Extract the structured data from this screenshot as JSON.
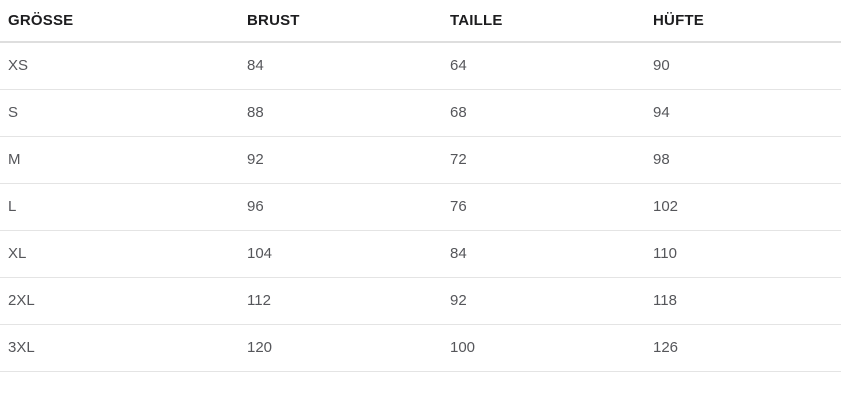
{
  "table": {
    "columns": [
      "GRÖSSE",
      "BRUST",
      "TAILLE",
      "HÜFTE"
    ],
    "rows": [
      {
        "size": "XS",
        "values": [
          "84",
          "64",
          "90"
        ]
      },
      {
        "size": "S",
        "values": [
          "88",
          "68",
          "94"
        ]
      },
      {
        "size": "M",
        "values": [
          "92",
          "72",
          "98"
        ]
      },
      {
        "size": "L",
        "values": [
          "96",
          "76",
          "102"
        ]
      },
      {
        "size": "XL",
        "values": [
          "104",
          "84",
          "110"
        ]
      },
      {
        "size": "2XL",
        "values": [
          "112",
          "92",
          "118"
        ]
      },
      {
        "size": "3XL",
        "values": [
          "120",
          "100",
          "126"
        ]
      }
    ]
  },
  "colors": {
    "header_text": "#1d1d1f",
    "body_text": "#55565a",
    "divider": "#e4e4e4",
    "header_divider": "#dedede",
    "bg": "#ffffff"
  }
}
